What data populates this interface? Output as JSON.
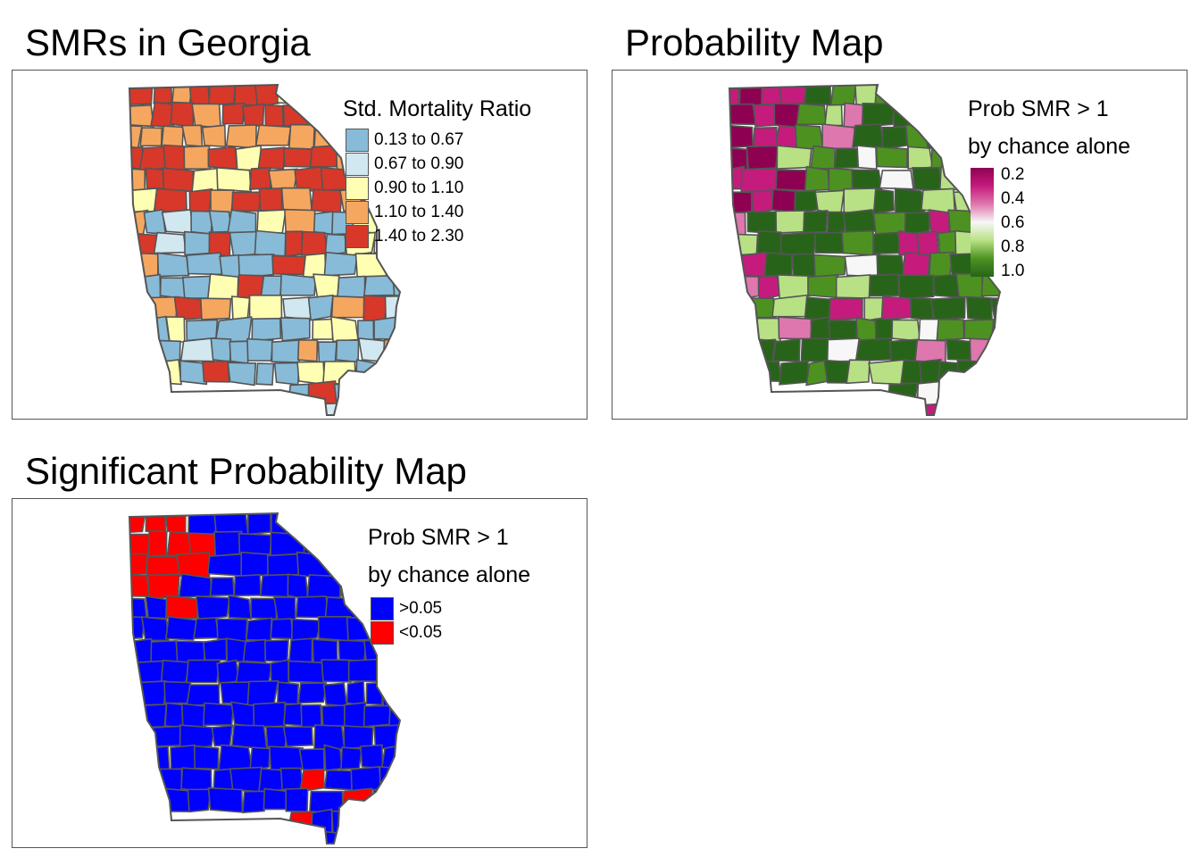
{
  "panels": {
    "smr": {
      "title": "SMRs in Georgia",
      "legend": {
        "title": "Std. Mortality Ratio",
        "items": [
          {
            "label": "0.13 to 0.67",
            "color": "#88bbd8"
          },
          {
            "label": "0.67 to 0.90",
            "color": "#d1e8f0"
          },
          {
            "label": "0.90 to 1.10",
            "color": "#ffffb3"
          },
          {
            "label": "1.10 to 1.40",
            "color": "#f5a760"
          },
          {
            "label": "1.40 to 2.30",
            "color": "#d7382a"
          }
        ]
      }
    },
    "prob": {
      "title": "Probability Map",
      "legend": {
        "title_line1": "Prob SMR > 1",
        "title_line2": "by chance alone",
        "ticks": [
          "0.2",
          "0.4",
          "0.6",
          "0.8",
          "1.0"
        ],
        "palette": [
          "#8e0152",
          "#c51b7d",
          "#de77ae",
          "#f7f7f7",
          "#b8e186",
          "#4d9221",
          "#276419"
        ]
      }
    },
    "sig": {
      "title": "Significant Probability Map",
      "legend": {
        "title_line1": "Prob SMR > 1",
        "title_line2": "by chance alone",
        "items": [
          {
            "label": ">0.05",
            "color": "#0000ff"
          },
          {
            "label": "<0.05",
            "color": "#ff0000"
          }
        ]
      }
    }
  },
  "map_style": {
    "border_color": "#555555"
  }
}
